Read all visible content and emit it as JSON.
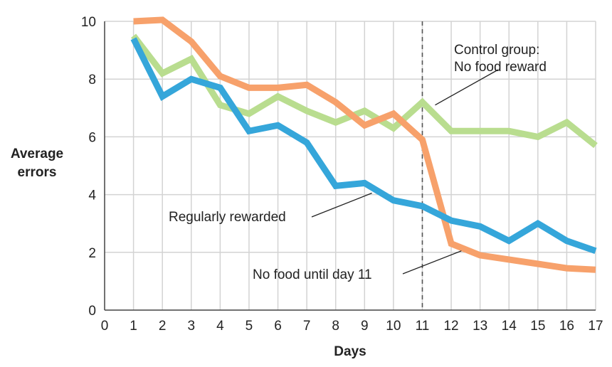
{
  "chart_data": {
    "type": "line",
    "xlabel": "Days",
    "ylabel": [
      "Average",
      "errors"
    ],
    "xlim": [
      0,
      17
    ],
    "ylim": [
      0,
      10
    ],
    "x_ticks": [
      0,
      1,
      2,
      3,
      4,
      5,
      6,
      7,
      8,
      9,
      10,
      11,
      12,
      13,
      14,
      15,
      16,
      17
    ],
    "y_ticks": [
      0,
      2,
      4,
      6,
      8,
      10
    ],
    "grid": true,
    "x": [
      1,
      2,
      3,
      4,
      5,
      6,
      7,
      8,
      9,
      10,
      11,
      12,
      13,
      14,
      15,
      16,
      17
    ],
    "series": [
      {
        "key": "control",
        "name": [
          "Control group:",
          "No food reward"
        ],
        "color": "#b9dd8f",
        "values": [
          9.5,
          8.2,
          8.7,
          7.1,
          6.8,
          7.4,
          6.9,
          6.5,
          6.9,
          6.3,
          7.2,
          6.2,
          6.2,
          6.2,
          6.0,
          6.5,
          5.7
        ]
      },
      {
        "key": "delayed",
        "name": [
          "No food until day 11"
        ],
        "color": "#f7a16b",
        "values": [
          10.0,
          10.05,
          9.3,
          8.1,
          7.7,
          7.7,
          7.8,
          7.2,
          6.4,
          6.8,
          5.9,
          2.3,
          1.9,
          1.75,
          1.6,
          1.45,
          1.4
        ]
      },
      {
        "key": "regular",
        "name": [
          "Regularly rewarded"
        ],
        "color": "#35a6da",
        "values": [
          9.4,
          7.4,
          8.0,
          7.7,
          6.2,
          6.4,
          5.8,
          4.3,
          4.4,
          3.8,
          3.6,
          3.1,
          2.9,
          2.4,
          3.0,
          2.4,
          2.05
        ]
      }
    ],
    "reference_line": {
      "x": 11,
      "style": "dashed"
    }
  }
}
